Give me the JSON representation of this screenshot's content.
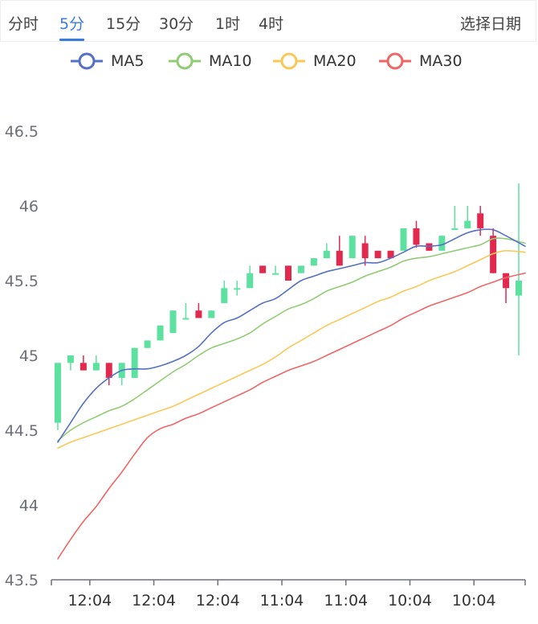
{
  "tabs": [
    {
      "label": "分时",
      "active": false
    },
    {
      "label": "5分",
      "active": true
    },
    {
      "label": "15分",
      "active": false
    },
    {
      "label": "30分",
      "active": false
    },
    {
      "label": "1时",
      "active": false
    },
    {
      "label": "4时",
      "active": false
    }
  ],
  "date_picker_label": "选择日期",
  "colors": {
    "MA5": "#5470c6",
    "MA10": "#91cc75",
    "MA20": "#fac858",
    "MA30": "#ee6666",
    "up": "#5ce1a0",
    "down": "#e3284e",
    "axis": "#6e7079",
    "tab_active": "#3b7be0"
  },
  "chart_data": {
    "type": "candlestick",
    "legend": [
      "MA5",
      "MA10",
      "MA20",
      "MA30"
    ],
    "legend_position": "top-center",
    "y_axis": {
      "min": 43.5,
      "max": 46.5,
      "ticks": [
        "43.5",
        "44",
        "44.5",
        "45",
        "45.5",
        "46",
        "46.5"
      ]
    },
    "x_axis": {
      "tick_labels": [
        "12:04",
        "12:04",
        "12:04",
        "11:04",
        "11:04",
        "10:04",
        "10:04"
      ]
    },
    "grid": false,
    "candles": [
      {
        "open": 44.55,
        "close": 44.95,
        "low": 44.5,
        "high": 44.95
      },
      {
        "open": 44.95,
        "close": 45.0,
        "low": 44.9,
        "high": 45.0
      },
      {
        "open": 44.95,
        "close": 44.9,
        "low": 44.9,
        "high": 45.0
      },
      {
        "open": 44.9,
        "close": 44.95,
        "low": 44.9,
        "high": 45.0
      },
      {
        "open": 44.95,
        "close": 44.85,
        "low": 44.8,
        "high": 44.95
      },
      {
        "open": 44.85,
        "close": 44.95,
        "low": 44.8,
        "high": 44.95
      },
      {
        "open": 44.85,
        "close": 45.05,
        "low": 44.85,
        "high": 45.05
      },
      {
        "open": 45.05,
        "close": 45.1,
        "low": 45.05,
        "high": 45.1
      },
      {
        "open": 45.1,
        "close": 45.2,
        "low": 45.1,
        "high": 45.2
      },
      {
        "open": 45.15,
        "close": 45.3,
        "low": 45.15,
        "high": 45.3
      },
      {
        "open": 45.25,
        "close": 45.25,
        "low": 45.25,
        "high": 45.35
      },
      {
        "open": 45.3,
        "close": 45.25,
        "low": 45.25,
        "high": 45.35
      },
      {
        "open": 45.25,
        "close": 45.3,
        "low": 45.25,
        "high": 45.3
      },
      {
        "open": 45.35,
        "close": 45.45,
        "low": 45.35,
        "high": 45.5
      },
      {
        "open": 45.45,
        "close": 45.45,
        "low": 45.4,
        "high": 45.5
      },
      {
        "open": 45.45,
        "close": 45.55,
        "low": 45.45,
        "high": 45.6
      },
      {
        "open": 45.6,
        "close": 45.55,
        "low": 45.55,
        "high": 45.6
      },
      {
        "open": 45.55,
        "close": 45.55,
        "low": 45.55,
        "high": 45.6
      },
      {
        "open": 45.6,
        "close": 45.5,
        "low": 45.5,
        "high": 45.6
      },
      {
        "open": 45.55,
        "close": 45.6,
        "low": 45.55,
        "high": 45.6
      },
      {
        "open": 45.6,
        "close": 45.65,
        "low": 45.6,
        "high": 45.65
      },
      {
        "open": 45.65,
        "close": 45.7,
        "low": 45.65,
        "high": 45.75
      },
      {
        "open": 45.7,
        "close": 45.6,
        "low": 45.6,
        "high": 45.8
      },
      {
        "open": 45.65,
        "close": 45.8,
        "low": 45.65,
        "high": 45.8
      },
      {
        "open": 45.75,
        "close": 45.65,
        "low": 45.6,
        "high": 45.8
      },
      {
        "open": 45.7,
        "close": 45.65,
        "low": 45.65,
        "high": 45.7
      },
      {
        "open": 45.7,
        "close": 45.65,
        "low": 45.65,
        "high": 45.7
      },
      {
        "open": 45.7,
        "close": 45.85,
        "low": 45.7,
        "high": 45.85
      },
      {
        "open": 45.85,
        "close": 45.74,
        "low": 45.72,
        "high": 45.9
      },
      {
        "open": 45.75,
        "close": 45.7,
        "low": 45.7,
        "high": 45.75
      },
      {
        "open": 45.7,
        "close": 45.8,
        "low": 45.7,
        "high": 45.8
      },
      {
        "open": 45.85,
        "close": 45.85,
        "low": 45.85,
        "high": 46.0
      },
      {
        "open": 45.85,
        "close": 45.9,
        "low": 45.85,
        "high": 46.0
      },
      {
        "open": 45.95,
        "close": 45.85,
        "low": 45.8,
        "high": 46.0
      },
      {
        "open": 45.8,
        "close": 45.55,
        "low": 45.55,
        "high": 45.85
      },
      {
        "open": 45.55,
        "close": 45.45,
        "low": 45.35,
        "high": 45.55
      },
      {
        "open": 45.4,
        "close": 45.5,
        "low": 45.0,
        "high": 46.15
      }
    ],
    "series": [
      {
        "name": "MA5",
        "values": [
          44.42,
          44.55,
          44.68,
          44.78,
          44.85,
          44.9,
          44.91,
          44.91,
          44.93,
          44.96,
          45.0,
          45.06,
          45.15,
          45.22,
          45.25,
          45.3,
          45.35,
          45.38,
          45.44,
          45.5,
          45.53,
          45.56,
          45.58,
          45.6,
          45.62,
          45.62,
          45.65,
          45.69,
          45.73,
          45.73,
          45.74,
          45.78,
          45.82,
          45.84,
          45.84,
          45.8,
          45.73
        ]
      },
      {
        "name": "MA10",
        "values": [
          44.43,
          44.5,
          44.55,
          44.59,
          44.63,
          44.66,
          44.71,
          44.77,
          44.83,
          44.89,
          44.94,
          45.0,
          45.05,
          45.08,
          45.11,
          45.15,
          45.21,
          45.26,
          45.31,
          45.34,
          45.38,
          45.43,
          45.46,
          45.49,
          45.53,
          45.56,
          45.59,
          45.63,
          45.65,
          45.66,
          45.68,
          45.7,
          45.72,
          45.74,
          45.78,
          45.78,
          45.75
        ]
      },
      {
        "name": "MA20",
        "values": [
          44.38,
          44.42,
          44.45,
          44.48,
          44.51,
          44.54,
          44.57,
          44.6,
          44.63,
          44.66,
          44.7,
          44.74,
          44.78,
          44.82,
          44.86,
          44.9,
          44.94,
          44.99,
          45.05,
          45.1,
          45.15,
          45.2,
          45.24,
          45.28,
          45.32,
          45.36,
          45.39,
          45.43,
          45.46,
          45.5,
          45.53,
          45.56,
          45.6,
          45.64,
          45.68,
          45.7,
          45.69
        ]
      },
      {
        "name": "MA30",
        "values": [
          43.64,
          43.77,
          43.89,
          43.99,
          44.11,
          44.22,
          44.34,
          44.45,
          44.51,
          44.54,
          44.58,
          44.61,
          44.65,
          44.69,
          44.73,
          44.77,
          44.82,
          44.86,
          44.9,
          44.93,
          44.96,
          45.0,
          45.04,
          45.08,
          45.12,
          45.16,
          45.2,
          45.25,
          45.29,
          45.33,
          45.36,
          45.39,
          45.42,
          45.46,
          45.49,
          45.52,
          45.55
        ]
      }
    ]
  }
}
